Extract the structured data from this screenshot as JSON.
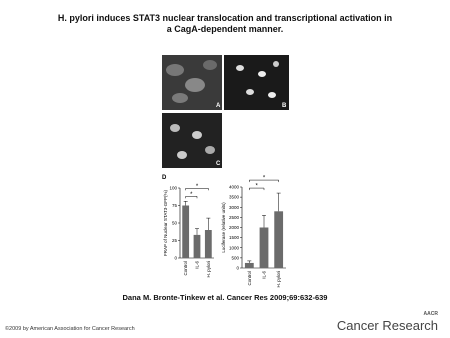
{
  "header": {
    "title": "H. pylori induces STAT3 nuclear translocation and transcriptional activation in a CagA-dependent manner."
  },
  "figure": {
    "panels": [
      "A",
      "B",
      "C",
      "D"
    ],
    "charts": [
      {
        "type": "bar",
        "ylabel": "FRAP of Nuclear STAT3-GFP(%)",
        "categories": [
          "Control",
          "IL-6",
          "H. pylori"
        ],
        "values": [
          75,
          33,
          40
        ],
        "errors": [
          6,
          9,
          17
        ],
        "color": "#6b6b6b",
        "ylim": [
          0,
          100
        ],
        "yticks": [
          0,
          25,
          50,
          75,
          100
        ],
        "significance": [
          "*",
          "*"
        ]
      },
      {
        "type": "bar",
        "ylabel": "Luciferase (relative units)",
        "categories": [
          "Control",
          "IL-6",
          "H. pylori"
        ],
        "values": [
          250,
          2000,
          2800
        ],
        "errors": [
          100,
          600,
          900
        ],
        "color": "#6b6b6b",
        "ylim": [
          0,
          4000
        ],
        "yticks": [
          0,
          500,
          1000,
          1500,
          2000,
          2500,
          3000,
          3500,
          4000
        ],
        "significance": [
          "*",
          "*"
        ]
      }
    ]
  },
  "citation": "Dana M. Bronte-Tinkew et al. Cancer Res 2009;69:632-639",
  "footer": {
    "copyright": "©2009 by American Association for Cancer Research",
    "logo_small": "AACR",
    "logo": "Cancer Research"
  }
}
